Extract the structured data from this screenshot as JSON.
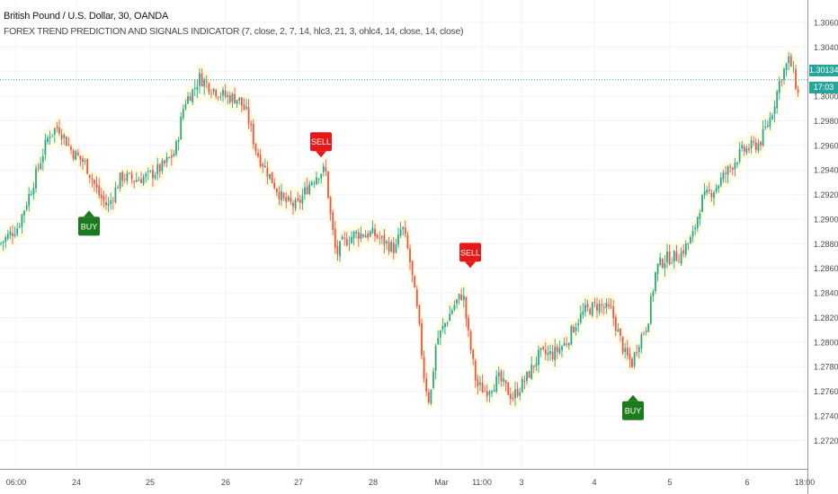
{
  "header": {
    "symbol_title": "British Pound / U.S. Dollar, 30, OANDA",
    "indicator_title": "FOREX TREND PREDICTION AND SIGNALS INDICATOR (7, close, 2, 7, 14, hlc3, 21, 3, ohlc4, 14, close, 14, close)"
  },
  "price_axis": {
    "ticks": [
      "1.30600",
      "1.30400",
      "1.30200",
      "1.30000",
      "1.29800",
      "1.29600",
      "1.29400",
      "1.29200",
      "1.29000",
      "1.28800",
      "1.28600",
      "1.28400",
      "1.28200",
      "1.28000",
      "1.27800",
      "1.27600",
      "1.27400",
      "1.27200"
    ],
    "current_price": "1.30134",
    "countdown": "17:03"
  },
  "time_axis": {
    "labels": [
      "06:00",
      "24",
      "25",
      "26",
      "27",
      "28",
      "Mar",
      "11:00",
      "3",
      "4",
      "5",
      "6",
      "18:00"
    ]
  },
  "colors": {
    "up": "#26a69a",
    "down": "#ef5350",
    "buy": "#1b7a1b",
    "sell": "#e61919",
    "price_line": "#26a69a",
    "glow": "#fffbe0"
  },
  "chart_data": {
    "type": "candlestick",
    "title": "British Pound / U.S. Dollar, 30, OANDA",
    "ylim": [
      1.271,
      1.3068
    ],
    "anchors": [
      [
        0,
        1.288
      ],
      [
        20,
        1.2894
      ],
      [
        35,
        1.2925
      ],
      [
        55,
        1.297
      ],
      [
        65,
        1.2975
      ],
      [
        80,
        1.2955
      ],
      [
        95,
        1.2945
      ],
      [
        110,
        1.292
      ],
      [
        120,
        1.291
      ],
      [
        135,
        1.2935
      ],
      [
        150,
        1.2932
      ],
      [
        165,
        1.2935
      ],
      [
        180,
        1.2942
      ],
      [
        195,
        1.2955
      ],
      [
        205,
        1.2995
      ],
      [
        215,
        1.3005
      ],
      [
        222,
        1.3015
      ],
      [
        235,
        1.3007
      ],
      [
        250,
        1.3
      ],
      [
        265,
        1.2998
      ],
      [
        275,
        1.2985
      ],
      [
        285,
        1.2955
      ],
      [
        300,
        1.2935
      ],
      [
        315,
        1.2915
      ],
      [
        330,
        1.291
      ],
      [
        345,
        1.293
      ],
      [
        355,
        1.2938
      ],
      [
        362,
        1.294
      ],
      [
        368,
        1.29
      ],
      [
        374,
        1.287
      ],
      [
        380,
        1.288
      ],
      [
        395,
        1.2888
      ],
      [
        415,
        1.2888
      ],
      [
        430,
        1.288
      ],
      [
        440,
        1.2875
      ],
      [
        447,
        1.2895
      ],
      [
        455,
        1.287
      ],
      [
        465,
        1.282
      ],
      [
        472,
        1.277
      ],
      [
        478,
        1.275
      ],
      [
        485,
        1.28
      ],
      [
        495,
        1.2815
      ],
      [
        505,
        1.283
      ],
      [
        515,
        1.284
      ],
      [
        520,
        1.281
      ],
      [
        530,
        1.2765
      ],
      [
        540,
        1.276
      ],
      [
        555,
        1.277
      ],
      [
        570,
        1.2755
      ],
      [
        585,
        1.277
      ],
      [
        600,
        1.279
      ],
      [
        615,
        1.279
      ],
      [
        630,
        1.28
      ],
      [
        640,
        1.2815
      ],
      [
        650,
        1.2825
      ],
      [
        665,
        1.283
      ],
      [
        680,
        1.2825
      ],
      [
        695,
        1.279
      ],
      [
        703,
        1.2783
      ],
      [
        710,
        1.28
      ],
      [
        720,
        1.2815
      ],
      [
        730,
        1.286
      ],
      [
        740,
        1.2868
      ],
      [
        755,
        1.287
      ],
      [
        770,
        1.2885
      ],
      [
        780,
        1.2915
      ],
      [
        795,
        1.2925
      ],
      [
        810,
        1.294
      ],
      [
        825,
        1.2955
      ],
      [
        845,
        1.2962
      ],
      [
        858,
        1.2985
      ],
      [
        868,
        1.3015
      ],
      [
        878,
        1.303
      ],
      [
        885,
        1.301
      ],
      [
        888,
        1.3
      ]
    ],
    "signals": [
      {
        "label": "BUY",
        "x": 99,
        "price": 1.2915
      },
      {
        "label": "SELL",
        "x": 357,
        "price": 1.294
      },
      {
        "label": "SELL",
        "x": 523,
        "price": 1.285
      },
      {
        "label": "BUY",
        "x": 704,
        "price": 1.2765
      }
    ]
  }
}
